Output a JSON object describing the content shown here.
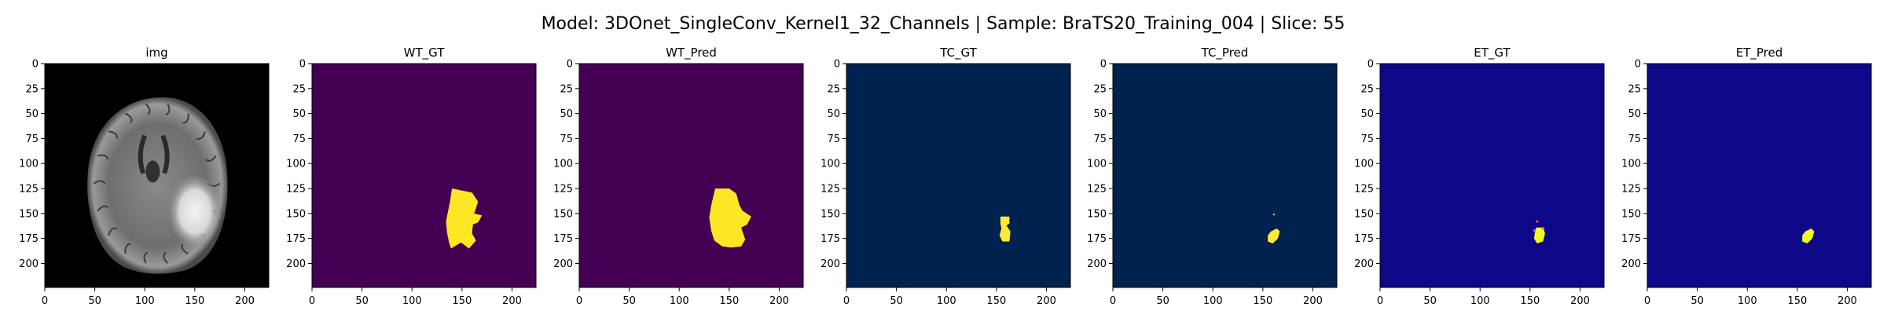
{
  "figure": {
    "suptitle": "Model: 3DOnet_SingleConv_Kernel1_32_Channels | Sample: BraTS20_Training_004 | Slice: 55"
  },
  "chart_data": [
    {
      "type": "heatmap",
      "title": "img",
      "colormap": "gray",
      "background": "#000000",
      "content": "brain MRI slice (FLAIR) with hyperintense lesion on right",
      "xlim": [
        0,
        224
      ],
      "ylim": [
        224,
        0
      ],
      "xticks": [
        0,
        50,
        100,
        150,
        200
      ],
      "yticks": [
        0,
        25,
        50,
        75,
        100,
        125,
        150,
        175,
        200
      ],
      "lesion": {
        "center": [
          150,
          148
        ]
      }
    },
    {
      "type": "heatmap",
      "title": "WT_GT",
      "colormap": "viridis",
      "background": "#440154",
      "foreground": "#fde725",
      "xlim": [
        0,
        224
      ],
      "ylim": [
        224,
        0
      ],
      "xticks": [
        0,
        50,
        100,
        150,
        200
      ],
      "yticks": [
        0,
        25,
        50,
        75,
        100,
        125,
        150,
        175,
        200
      ],
      "mask": [
        [
          140,
          125
        ],
        [
          150,
          127
        ],
        [
          160,
          129
        ],
        [
          166,
          138
        ],
        [
          163,
          148
        ],
        [
          162,
          150
        ],
        [
          170,
          152
        ],
        [
          166,
          159
        ],
        [
          161,
          161
        ],
        [
          160,
          170
        ],
        [
          164,
          177
        ],
        [
          157,
          185
        ],
        [
          149,
          179
        ],
        [
          139,
          185
        ],
        [
          137,
          179
        ],
        [
          135,
          169
        ],
        [
          134,
          158
        ],
        [
          136,
          148
        ],
        [
          138,
          138
        ]
      ]
    },
    {
      "type": "heatmap",
      "title": "WT_Pred",
      "colormap": "viridis",
      "background": "#440154",
      "foreground": "#fde725",
      "xlim": [
        0,
        224
      ],
      "ylim": [
        224,
        0
      ],
      "xticks": [
        0,
        50,
        100,
        150,
        200
      ],
      "yticks": [
        0,
        25,
        50,
        75,
        100,
        125,
        150,
        175,
        200
      ],
      "mask": [
        [
          136,
          125
        ],
        [
          150,
          125
        ],
        [
          157,
          130
        ],
        [
          160,
          141
        ],
        [
          163,
          147
        ],
        [
          172,
          153
        ],
        [
          168,
          161
        ],
        [
          162,
          164
        ],
        [
          166,
          176
        ],
        [
          162,
          183
        ],
        [
          152,
          184
        ],
        [
          143,
          183
        ],
        [
          135,
          177
        ],
        [
          132,
          167
        ],
        [
          130,
          154
        ],
        [
          132,
          142
        ]
      ]
    },
    {
      "type": "heatmap",
      "title": "TC_GT",
      "colormap": "cividis",
      "background": "#00224e",
      "foreground": "#fee838",
      "xlim": [
        0,
        224
      ],
      "ylim": [
        224,
        0
      ],
      "xticks": [
        0,
        50,
        100,
        150,
        200
      ],
      "yticks": [
        0,
        25,
        50,
        75,
        100,
        125,
        150,
        175,
        200
      ],
      "mask": [
        [
          154,
          153
        ],
        [
          163,
          153
        ],
        [
          163,
          160
        ],
        [
          160,
          162
        ],
        [
          164,
          168
        ],
        [
          163,
          178
        ],
        [
          156,
          178
        ],
        [
          153,
          172
        ],
        [
          155,
          165
        ],
        [
          154,
          160
        ]
      ]
    },
    {
      "type": "heatmap",
      "title": "TC_Pred",
      "colormap": "cividis",
      "background": "#00224e",
      "foreground": "#fee838",
      "xlim": [
        0,
        224
      ],
      "ylim": [
        224,
        0
      ],
      "xticks": [
        0,
        50,
        100,
        150,
        200
      ],
      "yticks": [
        0,
        25,
        50,
        75,
        100,
        125,
        150,
        175,
        200
      ],
      "mask": [
        [
          158,
          168
        ],
        [
          164,
          165
        ],
        [
          167,
          168
        ],
        [
          165,
          175
        ],
        [
          160,
          180
        ],
        [
          155,
          178
        ],
        [
          155,
          172
        ]
      ],
      "speck": [
        161,
        151
      ]
    },
    {
      "type": "heatmap",
      "title": "ET_GT",
      "colormap": "plasma",
      "background": "#0d0887",
      "foreground": "#f0f921",
      "xlim": [
        0,
        224
      ],
      "ylim": [
        224,
        0
      ],
      "xticks": [
        0,
        50,
        100,
        150,
        200
      ],
      "yticks": [
        0,
        25,
        50,
        75,
        100,
        125,
        150,
        175,
        200
      ],
      "mask": [
        [
          156,
          164
        ],
        [
          163,
          164
        ],
        [
          165,
          170
        ],
        [
          163,
          178
        ],
        [
          157,
          180
        ],
        [
          154,
          175
        ],
        [
          155,
          168
        ]
      ],
      "edge_marks": [
        [
          157,
          158
        ],
        [
          163,
          165
        ],
        [
          154,
          167
        ]
      ]
    },
    {
      "type": "heatmap",
      "title": "ET_Pred",
      "colormap": "plasma",
      "background": "#0d0887",
      "foreground": "#f0f921",
      "xlim": [
        0,
        224
      ],
      "ylim": [
        224,
        0
      ],
      "xticks": [
        0,
        50,
        100,
        150,
        200
      ],
      "yticks": [
        0,
        25,
        50,
        75,
        100,
        125,
        150,
        175,
        200
      ],
      "mask": [
        [
          158,
          168
        ],
        [
          164,
          165
        ],
        [
          167,
          168
        ],
        [
          165,
          175
        ],
        [
          160,
          180
        ],
        [
          155,
          178
        ],
        [
          155,
          172
        ]
      ]
    }
  ]
}
